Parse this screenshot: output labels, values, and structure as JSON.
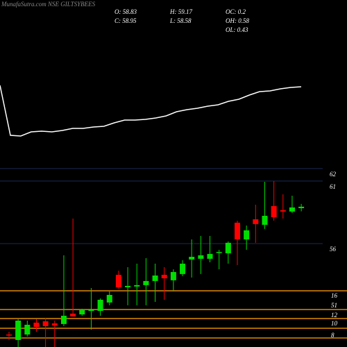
{
  "chart_data": {
    "type": "candlestick",
    "title": "MunafaSutra.com NSE GILTSYBEES",
    "stats": [
      "O: 58.83",
      "H: 59.17",
      "OC: 0.2",
      "C: 58.95",
      "L: 58.58",
      "OH: 0.58",
      "OL: 0.43"
    ],
    "up_color": "#00dd00",
    "down_color": "#ff0000",
    "open": [
      48.72,
      48.28,
      48.72,
      49.67,
      49.78,
      49.61,
      49.56,
      50.39,
      50.33,
      50.61,
      50.61,
      51.28,
      53.5,
      52.5,
      52.56,
      52.67,
      53.0,
      53.5,
      53.06,
      53.56,
      54.72,
      54.78,
      54.78,
      55.28,
      55.22,
      57.67,
      56.33,
      57.94,
      57.5,
      59.0,
      58.67,
      58.56,
      58.83
    ],
    "high": [
      48.94,
      49.94,
      49.83,
      49.94,
      50.06,
      49.83,
      55.06,
      58.0,
      50.78,
      52.44,
      51.61,
      52.17,
      53.83,
      54.11,
      54.39,
      54.83,
      54.39,
      54.11,
      53.94,
      54.67,
      56.33,
      56.61,
      56.61,
      55.5,
      56.17,
      57.83,
      57.44,
      59.11,
      60.94,
      61.0,
      59.94,
      59.83,
      59.17
    ],
    "low": [
      48.28,
      47.72,
      48.56,
      48.94,
      47.72,
      47.72,
      49.39,
      50.17,
      50.22,
      49.11,
      50.22,
      51.06,
      52.39,
      51.06,
      51.06,
      51.06,
      51.33,
      51.5,
      52.17,
      53.39,
      53.28,
      53.56,
      54.5,
      53.94,
      54.39,
      54.28,
      55.5,
      56.06,
      57.17,
      57.83,
      58.0,
      58.44,
      58.58
    ],
    "close": [
      48.67,
      49.83,
      49.5,
      49.33,
      49.39,
      49.44,
      50.22,
      50.17,
      50.67,
      50.72,
      51.5,
      51.89,
      52.5,
      52.61,
      52.67,
      53.0,
      53.44,
      53.22,
      53.72,
      54.39,
      54.94,
      55.06,
      55.17,
      55.33,
      56.06,
      56.33,
      57.06,
      57.56,
      58.22,
      58.11,
      58.56,
      58.89,
      58.95
    ],
    "ylim": [
      47.72,
      62.94
    ],
    "yticks": [
      62,
      61,
      56
    ],
    "indicator": {
      "color": "#ffffff",
      "ylim": [
        0,
        100
      ],
      "values": [
        77,
        5,
        4,
        10,
        11,
        10,
        12,
        15,
        15,
        17,
        18,
        23,
        27,
        27,
        28,
        30,
        33,
        39,
        42,
        44,
        47,
        49,
        54,
        57,
        63,
        68,
        69,
        72,
        74,
        75
      ]
    },
    "level_labels": [
      "16",
      "51",
      "12",
      "10",
      "8"
    ]
  }
}
